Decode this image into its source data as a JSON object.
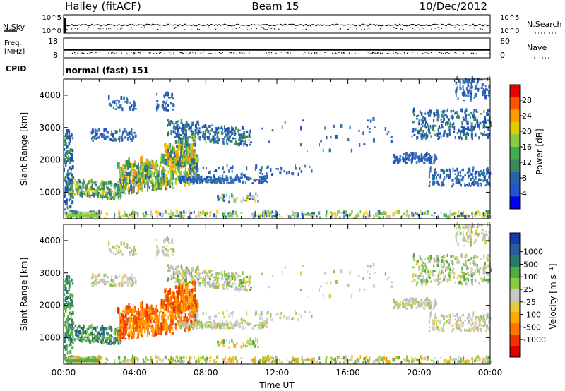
{
  "header": {
    "station": "Halley (fitACF)",
    "beam": "Beam 15",
    "date": "10/Dec/2012"
  },
  "sky_panel": {
    "left_label": "N.Sky",
    "right_label": "N.Search",
    "left_ticks": [
      "10^5",
      "10^0"
    ],
    "right_ticks": [
      "10^5",
      "10^0"
    ]
  },
  "freq_panel": {
    "left_label_line1": "Freq.",
    "left_label_line2": "[MHz]",
    "right_label": "Nave",
    "left_ticks": [
      "18",
      "8"
    ],
    "right_ticks": [
      "60",
      "0"
    ]
  },
  "cpid": {
    "label": "CPID",
    "value": "normal (fast) 151"
  },
  "chart_data": [
    {
      "type": "heatmap",
      "name_of_panel": "power",
      "ylabel": "Slant Range [km]",
      "ylim": [
        180,
        4500
      ],
      "yticks": [
        "1000",
        "2000",
        "3000",
        "4000"
      ],
      "xlim": [
        "00:00",
        "24:00"
      ],
      "xticks": [
        "00:00",
        "04:00",
        "08:00",
        "12:00",
        "16:00",
        "20:00",
        "00:00"
      ],
      "colorbar": {
        "label": "Power [dB]",
        "ticks": [
          "4",
          "8",
          "12",
          "16",
          "20",
          "24",
          "28"
        ],
        "colors": [
          "#0000ee",
          "#2255cc",
          "#2f5fa8",
          "#3a8a5a",
          "#44aa55",
          "#88cc44",
          "#ddcc00",
          "#ff9900",
          "#ff5500",
          "#ee0000"
        ]
      }
    },
    {
      "type": "heatmap",
      "name_of_panel": "velocity",
      "ylabel": "Slant Range [km]",
      "ylim": [
        180,
        4500
      ],
      "yticks": [
        "1000",
        "2000",
        "3000",
        "4000"
      ],
      "xlim": [
        "00:00",
        "24:00"
      ],
      "xticks": [
        "00:00",
        "04:00",
        "08:00",
        "12:00",
        "16:00",
        "20:00",
        "00:00"
      ],
      "xlabel": "Time UT",
      "colorbar": {
        "label": "Velocity [m s⁻¹]",
        "ticks": [
          "1000",
          "500",
          "100",
          "25",
          "-25",
          "-100",
          "-500",
          "-1000"
        ],
        "colors": [
          "#1a3aa8",
          "#2c5aa0",
          "#2a7a6a",
          "#55aa44",
          "#88cc44",
          "#c8c8c8",
          "#ddcc44",
          "#ffaa00",
          "#ff7700",
          "#ee3300",
          "#dd0000"
        ]
      }
    }
  ]
}
